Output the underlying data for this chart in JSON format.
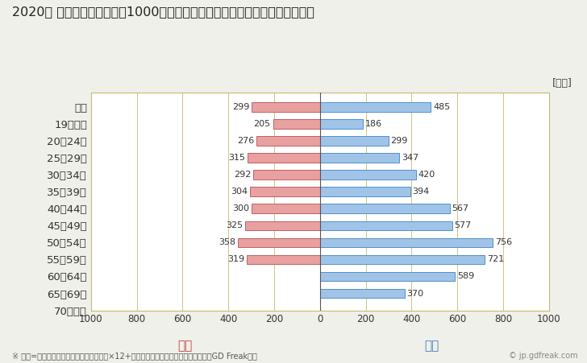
{
  "title": "2020年 民間企業（従業者数1000人以上）フルタイム労働者の男女別平均年収",
  "unit_label": "[万円]",
  "footnote": "※ 年収=「きまって支給する現金給与額」×12+「年間賞与その他特別給与額」としてGD Freak推計",
  "watermark": "© jp.gdfreak.com",
  "female_label": "女性",
  "male_label": "男性",
  "categories": [
    "全体",
    "19歳以下",
    "20～24歳",
    "25～29歳",
    "30～34歳",
    "35～39歳",
    "40～44歳",
    "45～49歳",
    "50～54歳",
    "55～59歳",
    "60～64歳",
    "65～69歳",
    "70歳以上"
  ],
  "female_values": [
    299,
    205,
    276,
    315,
    292,
    304,
    300,
    325,
    358,
    319,
    0,
    0,
    0
  ],
  "male_values": [
    485,
    186,
    299,
    347,
    420,
    394,
    567,
    577,
    756,
    721,
    589,
    370,
    0
  ],
  "female_color": "#e8a0a0",
  "male_color": "#a0c4e8",
  "female_border_color": "#c06060",
  "male_border_color": "#5090c8",
  "female_text_color": "#c04040",
  "male_text_color": "#4080c0",
  "axis_color": "#c8b870",
  "background_color": "#f0f0ea",
  "plot_background": "#ffffff",
  "xlim": [
    -1000,
    1000
  ],
  "xticks": [
    -1000,
    -800,
    -600,
    -400,
    -200,
    0,
    200,
    400,
    600,
    800,
    1000
  ],
  "xtick_labels": [
    "1000",
    "800",
    "600",
    "400",
    "200",
    "0",
    "200",
    "400",
    "600",
    "800",
    "1000"
  ],
  "title_fontsize": 11.5,
  "tick_fontsize": 8.5,
  "label_fontsize": 11,
  "category_fontsize": 9.5,
  "footnote_fontsize": 7,
  "bar_height": 0.55,
  "value_fontsize": 8
}
